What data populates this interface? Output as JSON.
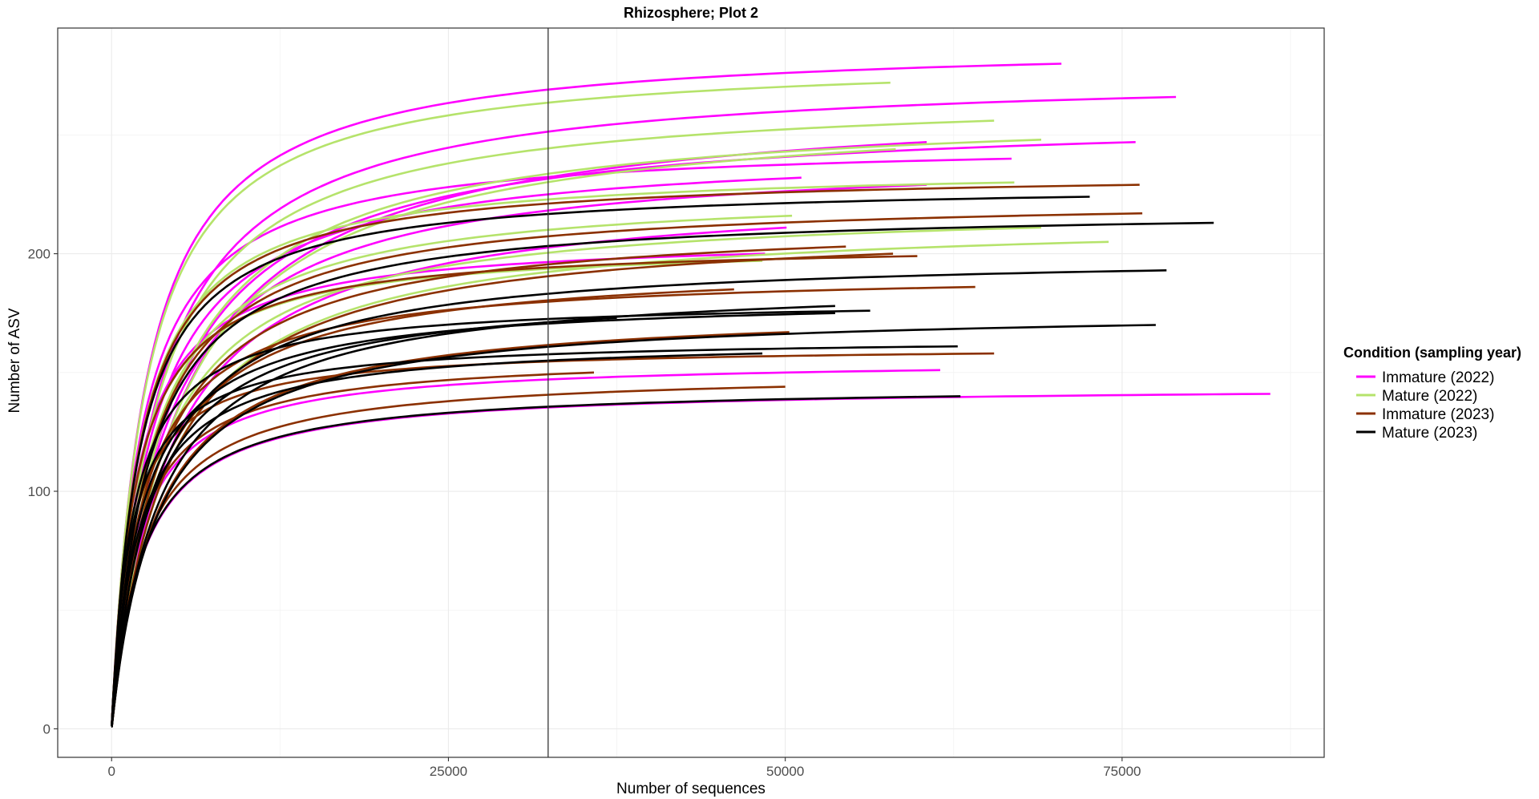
{
  "chart_data": {
    "type": "line",
    "title": "Rhizosphere; Plot 2",
    "xlabel": "Number of sequences",
    "ylabel": "Number of ASV",
    "xlim": [
      -4000,
      90000
    ],
    "ylim": [
      -12,
      295
    ],
    "x_ticks": [
      0,
      25000,
      50000,
      75000
    ],
    "x_tick_labels": [
      "0",
      "25000",
      "50000",
      "75000"
    ],
    "y_ticks": [
      0,
      100,
      200
    ],
    "y_tick_labels": [
      "0",
      "100",
      "200"
    ],
    "grid": true,
    "vline_x": 32400,
    "legend": {
      "title": "Condition (sampling year)",
      "position": "right",
      "entries": [
        {
          "label": "Immature (2022)",
          "color": "#ff00ff"
        },
        {
          "label": "Mature (2022)",
          "color": "#b5e36b"
        },
        {
          "label": "Immature (2023)",
          "color": "#8b3000"
        },
        {
          "label": "Mature (2023)",
          "color": "#000000"
        }
      ]
    },
    "series": [
      {
        "group": 0,
        "curves": [
          {
            "asv": 280,
            "max_seq": 70500
          },
          {
            "asv": 266,
            "max_seq": 79000
          },
          {
            "asv": 247,
            "max_seq": 76000
          },
          {
            "asv": 247,
            "max_seq": 60500
          },
          {
            "asv": 240,
            "max_seq": 66800
          },
          {
            "asv": 232,
            "max_seq": 51200
          },
          {
            "asv": 229,
            "max_seq": 60500
          },
          {
            "asv": 211,
            "max_seq": 50100
          },
          {
            "asv": 200,
            "max_seq": 48500
          },
          {
            "asv": 151,
            "max_seq": 61500
          },
          {
            "asv": 141,
            "max_seq": 86000
          }
        ]
      },
      {
        "group": 1,
        "curves": [
          {
            "asv": 272,
            "max_seq": 57800
          },
          {
            "asv": 256,
            "max_seq": 65500
          },
          {
            "asv": 248,
            "max_seq": 69000
          },
          {
            "asv": 244,
            "max_seq": 58200
          },
          {
            "asv": 230,
            "max_seq": 67000
          },
          {
            "asv": 216,
            "max_seq": 50500
          },
          {
            "asv": 211,
            "max_seq": 69000
          },
          {
            "asv": 205,
            "max_seq": 74000
          },
          {
            "asv": 197,
            "max_seq": 48300
          }
        ]
      },
      {
        "group": 2,
        "curves": [
          {
            "asv": 229,
            "max_seq": 76300
          },
          {
            "asv": 217,
            "max_seq": 76500
          },
          {
            "asv": 203,
            "max_seq": 54500
          },
          {
            "asv": 200,
            "max_seq": 58000
          },
          {
            "asv": 199,
            "max_seq": 59800
          },
          {
            "asv": 186,
            "max_seq": 64100
          },
          {
            "asv": 185,
            "max_seq": 46200
          },
          {
            "asv": 167,
            "max_seq": 50300
          },
          {
            "asv": 158,
            "max_seq": 65500
          },
          {
            "asv": 150,
            "max_seq": 35800
          },
          {
            "asv": 144,
            "max_seq": 50000
          }
        ]
      },
      {
        "group": 3,
        "curves": [
          {
            "asv": 224,
            "max_seq": 72600
          },
          {
            "asv": 213,
            "max_seq": 81800
          },
          {
            "asv": 193,
            "max_seq": 78300
          },
          {
            "asv": 178,
            "max_seq": 53700
          },
          {
            "asv": 176,
            "max_seq": 56300
          },
          {
            "asv": 175,
            "max_seq": 53700
          },
          {
            "asv": 173,
            "max_seq": 37500
          },
          {
            "asv": 170,
            "max_seq": 77500
          },
          {
            "asv": 161,
            "max_seq": 62800
          },
          {
            "asv": 158,
            "max_seq": 48300
          },
          {
            "asv": 140,
            "max_seq": 63000
          }
        ]
      }
    ]
  }
}
